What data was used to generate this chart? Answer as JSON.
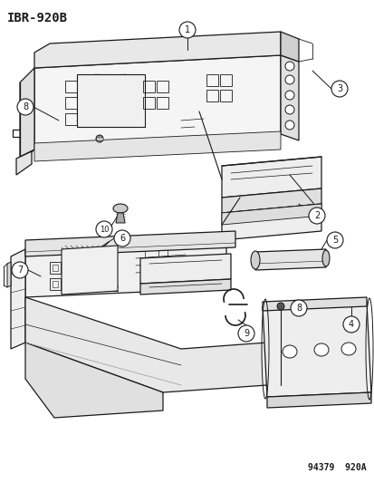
{
  "title": "IBR-920B",
  "footer": "94379  920A",
  "bg_color": "#ffffff",
  "line_color": "#1a1a1a",
  "title_fontsize": 10,
  "footer_fontsize": 7,
  "callout_fontsize": 7,
  "figwidth": 4.14,
  "figheight": 5.33,
  "dpi": 100
}
